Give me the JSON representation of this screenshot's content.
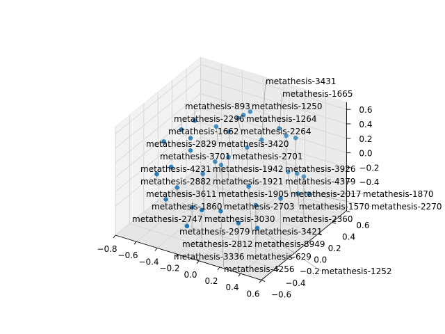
{
  "chart_data": {
    "type": "scatter3d",
    "title": "",
    "xlabel": "",
    "ylabel": "",
    "zlabel": "",
    "xlim": [
      -0.8,
      0.6
    ],
    "ylim": [
      -0.6,
      0.6
    ],
    "zlim": [
      -0.8,
      0.7
    ],
    "xticks": [
      "−0.8",
      "−0.6",
      "−0.4",
      "−0.2",
      "0.0",
      "0.2",
      "0.4",
      "0.6"
    ],
    "xtick_values": [
      -0.8,
      -0.6,
      -0.4,
      -0.2,
      0.0,
      0.2,
      0.4,
      0.6
    ],
    "yticks": [
      "−0.6",
      "−0.4",
      "−0.2",
      "0.0",
      "0.2",
      "0.4",
      "0.6"
    ],
    "ytick_values": [
      -0.6,
      -0.4,
      -0.2,
      0.0,
      0.2,
      0.4,
      0.6
    ],
    "zticks": [
      "−0.4",
      "−0.2",
      "0.0",
      "0.2",
      "0.4",
      "0.6"
    ],
    "ztick_values": [
      -0.4,
      -0.2,
      0.0,
      0.2,
      0.4,
      0.6
    ],
    "grid": true,
    "marker_color": "#1f77b4",
    "points": [
      {
        "label": "metathesis-1250",
        "x": -0.12,
        "y": 0.3,
        "z": 0.49
      },
      {
        "label": "metathesis-1264",
        "x": -0.15,
        "y": 0.25,
        "z": 0.47
      },
      {
        "label": "metathesis-2264",
        "x": -0.17,
        "y": 0.2,
        "z": 0.46
      },
      {
        "label": "metathesis-893",
        "x": -0.38,
        "y": -0.1,
        "z": 0.57
      },
      {
        "label": "metathesis-2296",
        "x": -0.44,
        "y": -0.2,
        "z": 0.5
      },
      {
        "label": "metathesis-3420",
        "x": -0.31,
        "y": 0.1,
        "z": 0.36
      },
      {
        "label": "metathesis-1665",
        "x": 0.09,
        "y": 0.4,
        "z": 0.27
      },
      {
        "label": "metathesis-2829",
        "x": -0.54,
        "y": -0.3,
        "z": 0.37
      },
      {
        "label": "metathesis-1662",
        "x": -0.42,
        "y": -0.1,
        "z": 0.31
      },
      {
        "label": "metathesis-2701",
        "x": -0.26,
        "y": 0.2,
        "z": 0.23
      },
      {
        "label": "metathesis-3431",
        "x": -0.01,
        "y": 0.3,
        "z": 0.15
      },
      {
        "label": "metathesis-3926",
        "x": 0.09,
        "y": 0.5,
        "z": 0.09
      },
      {
        "label": "metathesis-4379",
        "x": 0.18,
        "y": 0.5,
        "z": 0.1
      },
      {
        "label": "metathesis-1942",
        "x": -0.15,
        "y": 0.3,
        "z": -0.02
      },
      {
        "label": "metathesis-1921",
        "x": -0.26,
        "y": 0.2,
        "z": -0.12
      },
      {
        "label": "metathesis-1905",
        "x": -0.32,
        "y": 0.1,
        "z": -0.13
      },
      {
        "label": "metathesis-2703",
        "x": -0.33,
        "y": 0.2,
        "z": -0.26
      },
      {
        "label": "metathesis-3701",
        "x": -0.42,
        "y": -0.1,
        "z": 0.14
      },
      {
        "label": "metathesis-2017",
        "x": 0.04,
        "y": 0.6,
        "z": -0.51
      },
      {
        "label": "metathesis-4231",
        "x": -0.47,
        "y": -0.3,
        "z": 0.05
      },
      {
        "label": "metathesis-1570",
        "x": 0.16,
        "y": 0.55,
        "z": -0.44
      },
      {
        "label": "metathesis-2360",
        "x": 0.19,
        "y": 0.6,
        "z": -0.51
      },
      {
        "label": "metathesis-2882",
        "x": -0.54,
        "y": -0.4,
        "z": 0.0
      },
      {
        "label": "metathesis-3030",
        "x": -0.37,
        "y": 0.0,
        "z": -0.24
      },
      {
        "label": "metathesis-3611",
        "x": -0.48,
        "y": -0.2,
        "z": -0.32
      },
      {
        "label": "metathesis-3421",
        "x": 0.07,
        "y": 0.0,
        "z": -0.22
      },
      {
        "label": "metathesis-1870",
        "x": 0.27,
        "y": 0.4,
        "z": -0.55
      },
      {
        "label": "metathesis-2270",
        "x": 0.34,
        "y": 0.45,
        "z": -0.56
      },
      {
        "label": "metathesis-8949",
        "x": 0.24,
        "y": 0.2,
        "z": -0.47
      },
      {
        "label": "metathesis-1860",
        "x": -0.52,
        "y": -0.3,
        "z": -0.42
      },
      {
        "label": "metathesis-629",
        "x": 0.07,
        "y": 0.1,
        "z": -0.56
      },
      {
        "label": "metathesis-4256",
        "x": -0.13,
        "y": -0.1,
        "z": -0.57
      },
      {
        "label": "metathesis-2979",
        "x": -0.27,
        "y": -0.3,
        "z": -0.42
      },
      {
        "label": "metathesis-2812",
        "x": -0.21,
        "y": -0.25,
        "z": -0.47
      },
      {
        "label": "metathesis-3336",
        "x": 0.04,
        "y": -0.1,
        "z": -0.66
      },
      {
        "label": "metathesis-2747",
        "x": -0.25,
        "y": -0.4,
        "z": -0.59
      },
      {
        "label": "metathesis-1252",
        "x": 0.22,
        "y": -0.1,
        "z": -0.65
      }
    ]
  }
}
